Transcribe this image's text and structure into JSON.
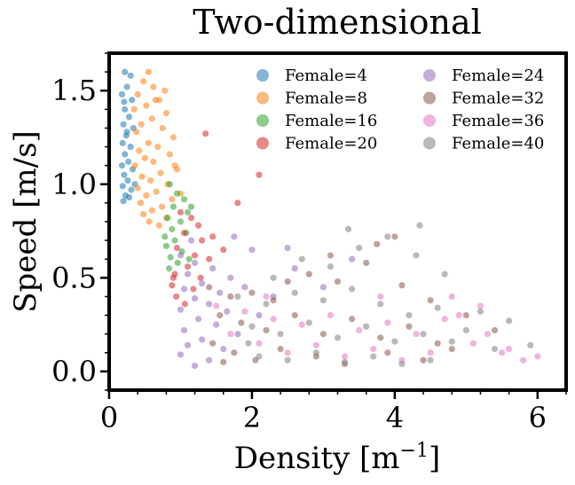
{
  "chart_data": {
    "type": "scatter",
    "title": "Two-dimensional",
    "xlabel_main": "Density [m",
    "xlabel_sup": "−1",
    "xlabel_close": "]",
    "ylabel": "Speed [m/s]",
    "xlim": [
      0,
      6.4
    ],
    "ylim": [
      -0.1,
      1.7
    ],
    "xticks": [
      0,
      2,
      4,
      6
    ],
    "xtick_labels": [
      "0",
      "2",
      "4",
      "6"
    ],
    "yticks": [
      0.0,
      0.5,
      1.0,
      1.5
    ],
    "ytick_labels": [
      "0.0",
      "0.5",
      "1.0",
      "1.5"
    ],
    "legend_position": "top-right",
    "legend_columns": 2,
    "series": [
      {
        "name": "Female=4",
        "color": "#1f77b4",
        "points": [
          [
            0.22,
            1.6
          ],
          [
            0.3,
            1.58
          ],
          [
            0.25,
            1.52
          ],
          [
            0.18,
            1.48
          ],
          [
            0.32,
            1.45
          ],
          [
            0.22,
            1.4
          ],
          [
            0.28,
            1.36
          ],
          [
            0.2,
            1.32
          ],
          [
            0.34,
            1.3
          ],
          [
            0.24,
            1.26
          ],
          [
            0.19,
            1.22
          ],
          [
            0.3,
            1.2
          ],
          [
            0.22,
            1.16
          ],
          [
            0.27,
            1.12
          ],
          [
            0.18,
            1.1
          ],
          [
            0.33,
            1.08
          ],
          [
            0.21,
            1.05
          ],
          [
            0.26,
            1.02
          ],
          [
            0.19,
            0.99
          ],
          [
            0.31,
            0.97
          ],
          [
            0.23,
            0.94
          ],
          [
            0.2,
            0.91
          ],
          [
            0.28,
            0.93
          ],
          [
            0.36,
            1.0
          ],
          [
            0.25,
            1.28
          ],
          [
            0.21,
            1.44
          ]
        ]
      },
      {
        "name": "Female=8",
        "color": "#ff7f0e",
        "points": [
          [
            0.55,
            1.6
          ],
          [
            0.48,
            1.55
          ],
          [
            0.62,
            1.52
          ],
          [
            0.4,
            1.48
          ],
          [
            0.7,
            1.45
          ],
          [
            0.52,
            1.42
          ],
          [
            0.35,
            1.4
          ],
          [
            0.8,
            1.38
          ],
          [
            0.6,
            1.35
          ],
          [
            0.45,
            1.32
          ],
          [
            0.75,
            1.3
          ],
          [
            0.38,
            1.28
          ],
          [
            0.9,
            1.25
          ],
          [
            0.55,
            1.22
          ],
          [
            0.68,
            1.2
          ],
          [
            0.42,
            1.18
          ],
          [
            0.85,
            1.16
          ],
          [
            0.5,
            1.14
          ],
          [
            0.62,
            1.12
          ],
          [
            0.36,
            1.1
          ],
          [
            0.95,
            1.08
          ],
          [
            0.72,
            1.06
          ],
          [
            0.46,
            1.04
          ],
          [
            0.58,
            1.02
          ],
          [
            0.82,
            1.0
          ],
          [
            0.4,
            0.98
          ],
          [
            0.66,
            0.96
          ],
          [
            0.52,
            0.94
          ],
          [
            0.88,
            0.92
          ],
          [
            0.44,
            0.9
          ],
          [
            0.74,
            0.88
          ],
          [
            0.6,
            0.86
          ],
          [
            0.48,
            0.84
          ],
          [
            0.8,
            0.82
          ],
          [
            0.56,
            0.8
          ],
          [
            0.7,
            0.78
          ],
          [
            1.0,
            0.95
          ],
          [
            0.92,
            1.1
          ],
          [
            0.65,
            1.45
          ],
          [
            0.78,
            1.5
          ]
        ]
      },
      {
        "name": "Female=16",
        "color": "#2ca02c",
        "points": [
          [
            0.85,
            1.0
          ],
          [
            0.95,
            0.95
          ],
          [
            1.05,
            0.92
          ],
          [
            0.9,
            0.88
          ],
          [
            1.1,
            0.85
          ],
          [
            0.82,
            0.82
          ],
          [
            1.0,
            0.8
          ],
          [
            0.88,
            0.76
          ],
          [
            1.08,
            0.74
          ],
          [
            0.92,
            0.7
          ],
          [
            0.8,
            0.67
          ],
          [
            1.02,
            0.64
          ],
          [
            0.86,
            0.61
          ],
          [
            0.96,
            0.58
          ],
          [
            0.84,
            0.55
          ],
          [
            1.12,
            0.6
          ],
          [
            0.78,
            0.72
          ],
          [
            1.15,
            0.88
          ]
        ]
      },
      {
        "name": "Female=20",
        "color": "#d62728",
        "points": [
          [
            1.35,
            1.27
          ],
          [
            2.1,
            1.05
          ],
          [
            1.8,
            0.9
          ],
          [
            1.0,
            0.85
          ],
          [
            1.15,
            0.82
          ],
          [
            1.25,
            0.78
          ],
          [
            1.05,
            0.74
          ],
          [
            1.3,
            0.7
          ],
          [
            0.95,
            0.66
          ],
          [
            1.2,
            0.62
          ],
          [
            1.4,
            0.6
          ],
          [
            1.1,
            0.56
          ],
          [
            0.92,
            0.52
          ],
          [
            1.28,
            0.5
          ],
          [
            0.88,
            0.46
          ],
          [
            1.18,
            0.44
          ],
          [
            0.94,
            0.4
          ],
          [
            1.06,
            0.36
          ],
          [
            0.9,
            0.5
          ],
          [
            1.45,
            0.72
          ],
          [
            1.6,
            0.65
          ]
        ]
      },
      {
        "name": "Female=24",
        "color": "#9467bd",
        "points": [
          [
            1.0,
            0.62
          ],
          [
            1.2,
            0.58
          ],
          [
            1.45,
            0.55
          ],
          [
            1.1,
            0.52
          ],
          [
            1.7,
            0.5
          ],
          [
            1.3,
            0.47
          ],
          [
            1.05,
            0.44
          ],
          [
            1.55,
            0.42
          ],
          [
            1.9,
            0.45
          ],
          [
            1.2,
            0.39
          ],
          [
            1.4,
            0.36
          ],
          [
            1.0,
            0.33
          ],
          [
            1.65,
            0.32
          ],
          [
            2.1,
            0.3
          ],
          [
            1.25,
            0.28
          ],
          [
            1.5,
            0.25
          ],
          [
            1.05,
            0.22
          ],
          [
            1.8,
            0.2
          ],
          [
            1.3,
            0.17
          ],
          [
            1.1,
            0.14
          ],
          [
            1.6,
            0.12
          ],
          [
            1.0,
            0.09
          ],
          [
            1.4,
            0.06
          ],
          [
            1.2,
            0.03
          ],
          [
            2.3,
            0.4
          ],
          [
            2.6,
            0.55
          ],
          [
            3.0,
            0.45
          ],
          [
            2.0,
            0.65
          ],
          [
            1.75,
            0.72
          ],
          [
            3.4,
            0.6
          ],
          [
            2.5,
            0.66
          ],
          [
            1.15,
            0.7
          ]
        ]
      },
      {
        "name": "Female=32",
        "color": "#8c564b",
        "points": [
          [
            1.4,
            0.45
          ],
          [
            1.7,
            0.4
          ],
          [
            2.0,
            0.42
          ],
          [
            2.3,
            0.38
          ],
          [
            2.8,
            0.52
          ],
          [
            3.2,
            0.48
          ],
          [
            3.6,
            0.58
          ],
          [
            4.1,
            0.46
          ],
          [
            4.5,
            0.38
          ],
          [
            5.0,
            0.3
          ],
          [
            5.4,
            0.22
          ],
          [
            1.55,
            0.3
          ],
          [
            1.85,
            0.26
          ],
          [
            2.2,
            0.22
          ],
          [
            2.6,
            0.3
          ],
          [
            3.0,
            0.2
          ],
          [
            3.4,
            0.28
          ],
          [
            3.8,
            0.18
          ],
          [
            4.2,
            0.24
          ],
          [
            4.6,
            0.15
          ],
          [
            1.45,
            0.15
          ],
          [
            1.75,
            0.1
          ],
          [
            2.05,
            0.06
          ],
          [
            2.4,
            0.12
          ],
          [
            2.9,
            0.08
          ],
          [
            3.3,
            0.04
          ],
          [
            3.9,
            0.1
          ],
          [
            4.4,
            0.06
          ],
          [
            4.8,
            0.12
          ],
          [
            1.6,
            0.05
          ],
          [
            3.1,
            0.62
          ],
          [
            3.75,
            0.68
          ],
          [
            4.0,
            0.72
          ],
          [
            2.5,
            0.48
          ]
        ]
      },
      {
        "name": "Female=36",
        "color": "#e377c2",
        "points": [
          [
            1.5,
            0.35
          ],
          [
            1.9,
            0.32
          ],
          [
            2.3,
            0.28
          ],
          [
            2.7,
            0.25
          ],
          [
            3.1,
            0.3
          ],
          [
            3.5,
            0.22
          ],
          [
            3.9,
            0.26
          ],
          [
            4.3,
            0.2
          ],
          [
            4.7,
            0.28
          ],
          [
            5.1,
            0.15
          ],
          [
            5.5,
            0.1
          ],
          [
            5.8,
            0.06
          ],
          [
            1.7,
            0.2
          ],
          [
            2.1,
            0.15
          ],
          [
            2.5,
            0.1
          ],
          [
            2.9,
            0.14
          ],
          [
            3.3,
            0.08
          ],
          [
            3.7,
            0.12
          ],
          [
            4.1,
            0.06
          ],
          [
            4.5,
            0.1
          ],
          [
            4.9,
            0.3
          ],
          [
            5.3,
            0.2
          ],
          [
            5.6,
            0.12
          ],
          [
            6.0,
            0.08
          ],
          [
            4.8,
            0.4
          ],
          [
            5.2,
            0.35
          ],
          [
            3.8,
            0.4
          ],
          [
            2.2,
            0.4
          ]
        ]
      },
      {
        "name": "Female=40",
        "color": "#7f7f7f",
        "points": [
          [
            1.8,
            0.4
          ],
          [
            2.2,
            0.36
          ],
          [
            2.6,
            0.42
          ],
          [
            3.0,
            0.38
          ],
          [
            3.4,
            0.44
          ],
          [
            3.8,
            0.36
          ],
          [
            4.2,
            0.3
          ],
          [
            4.6,
            0.34
          ],
          [
            5.0,
            0.22
          ],
          [
            5.4,
            0.12
          ],
          [
            5.9,
            0.14
          ],
          [
            2.0,
            0.24
          ],
          [
            2.4,
            0.2
          ],
          [
            2.8,
            0.26
          ],
          [
            3.2,
            0.18
          ],
          [
            3.6,
            0.24
          ],
          [
            4.0,
            0.16
          ],
          [
            4.4,
            0.2
          ],
          [
            4.8,
            0.16
          ],
          [
            2.1,
            0.08
          ],
          [
            2.5,
            0.06
          ],
          [
            2.9,
            0.1
          ],
          [
            3.3,
            0.05
          ],
          [
            3.7,
            0.08
          ],
          [
            4.1,
            0.04
          ],
          [
            4.5,
            0.06
          ],
          [
            2.3,
            0.5
          ],
          [
            2.7,
            0.6
          ],
          [
            3.1,
            0.56
          ],
          [
            3.5,
            0.66
          ],
          [
            3.9,
            0.72
          ],
          [
            4.3,
            0.62
          ],
          [
            4.7,
            0.52
          ],
          [
            5.2,
            0.32
          ],
          [
            5.6,
            0.27
          ],
          [
            1.95,
            0.15
          ],
          [
            3.35,
            0.76
          ],
          [
            4.35,
            0.78
          ]
        ]
      }
    ]
  }
}
